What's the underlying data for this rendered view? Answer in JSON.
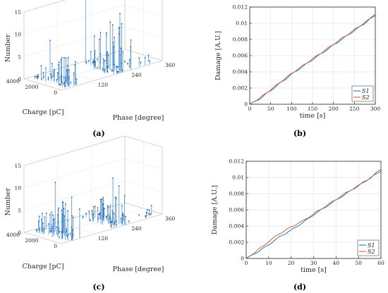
{
  "panels": [
    "(a)",
    "(b)",
    "(c)",
    "(d)"
  ],
  "colors": {
    "s1": "#0072BD",
    "s2": "#D95319",
    "stem": "#3A83C8",
    "grid": "#e5e5e5",
    "axis": "#262626"
  },
  "chart_data": [
    {
      "type": "scatter",
      "panel": "(a)",
      "kind": "3d-stem",
      "xlabel": "Phase [degree]",
      "ylabel": "Charge [pC]",
      "zlabel": "Number",
      "x_ticks": [
        "120",
        "240",
        "360"
      ],
      "y_ticks": [
        "0",
        "2000",
        "4000"
      ],
      "z_ticks": [
        "0",
        "5",
        "10",
        "15"
      ],
      "xlim": [
        0,
        360
      ],
      "ylim": [
        0,
        4000
      ],
      "zlim": [
        0,
        15
      ],
      "clusters": [
        {
          "phase": [
            20,
            70
          ],
          "charge": [
            0,
            3500
          ],
          "peak": 8
        },
        {
          "phase": [
            180,
            250
          ],
          "charge": [
            0,
            3500
          ],
          "peak": 15
        },
        {
          "phase": [
            255,
            330
          ],
          "charge": [
            0,
            1500
          ],
          "peak": 4
        }
      ]
    },
    {
      "type": "line",
      "panel": "(b)",
      "xlabel": "time [s]",
      "ylabel": "Damage [A.U.]",
      "xlim": [
        0,
        300
      ],
      "ylim": [
        0,
        0.012
      ],
      "x_ticks": [
        "0",
        "50",
        "100",
        "150",
        "200",
        "250",
        "300"
      ],
      "y_ticks": [
        "0",
        "0.002",
        "0.004",
        "0.006",
        "0.008",
        "0.01",
        "0.012"
      ],
      "grid": true,
      "legend_position": "bottom-right",
      "series": [
        {
          "name": "S1",
          "x": [
            0,
            25,
            50,
            75,
            100,
            125,
            150,
            175,
            200,
            225,
            250,
            275,
            300
          ],
          "values": [
            0,
            0.0007,
            0.0017,
            0.0027,
            0.0037,
            0.0046,
            0.0055,
            0.0064,
            0.0073,
            0.0082,
            0.0091,
            0.01,
            0.0111
          ]
        },
        {
          "name": "S2",
          "x": [
            0,
            25,
            50,
            75,
            100,
            125,
            150,
            175,
            200,
            225,
            250,
            275,
            300
          ],
          "values": [
            0,
            0.0008,
            0.0018,
            0.0028,
            0.0038,
            0.0047,
            0.0056,
            0.0065,
            0.0074,
            0.0083,
            0.0092,
            0.0101,
            0.011
          ]
        }
      ]
    },
    {
      "type": "scatter",
      "panel": "(c)",
      "kind": "3d-stem",
      "xlabel": "Phase [degree]",
      "ylabel": "Charge [pC]",
      "zlabel": "Number",
      "x_ticks": [
        "120",
        "240",
        "360"
      ],
      "y_ticks": [
        "0",
        "2000",
        "4000"
      ],
      "z_ticks": [
        "0",
        "5",
        "10",
        "15"
      ],
      "xlim": [
        0,
        360
      ],
      "ylim": [
        0,
        4000
      ],
      "zlim": [
        0,
        15
      ],
      "clusters": [
        {
          "phase": [
            20,
            70
          ],
          "charge": [
            0,
            3500
          ],
          "peak": 11
        },
        {
          "phase": [
            180,
            250
          ],
          "charge": [
            0,
            3500
          ],
          "peak": 10
        },
        {
          "phase": [
            300,
            340
          ],
          "charge": [
            0,
            800
          ],
          "peak": 2
        }
      ]
    },
    {
      "type": "line",
      "panel": "(d)",
      "xlabel": "time [s]",
      "ylabel": "Damage [A.U.]",
      "xlim": [
        0,
        60
      ],
      "ylim": [
        0,
        0.012
      ],
      "x_ticks": [
        "0",
        "10",
        "20",
        "30",
        "40",
        "50",
        "60"
      ],
      "y_ticks": [
        "0",
        "0.002",
        "0.004",
        "0.006",
        "0.008",
        "0.01",
        "0.012"
      ],
      "grid": true,
      "legend_position": "bottom-right",
      "series": [
        {
          "name": "S1",
          "x": [
            0,
            5,
            10,
            15,
            20,
            25,
            30,
            35,
            40,
            45,
            50,
            55,
            60
          ],
          "values": [
            0,
            0.0008,
            0.0017,
            0.0027,
            0.0035,
            0.0044,
            0.0054,
            0.0063,
            0.0072,
            0.0081,
            0.009,
            0.0099,
            0.011
          ]
        },
        {
          "name": "S2",
          "x": [
            0,
            5,
            10,
            15,
            20,
            25,
            30,
            35,
            40,
            45,
            50,
            55,
            60
          ],
          "values": [
            0,
            0.001,
            0.0021,
            0.0031,
            0.0039,
            0.0046,
            0.0055,
            0.0064,
            0.0073,
            0.0082,
            0.009,
            0.0099,
            0.0108
          ]
        }
      ]
    }
  ]
}
